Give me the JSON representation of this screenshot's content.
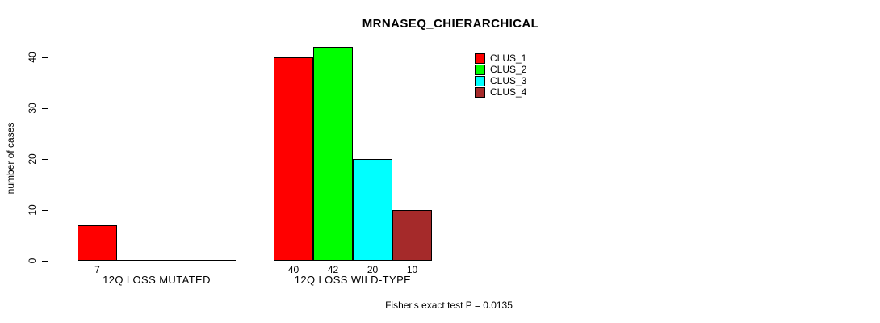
{
  "chart_data": {
    "type": "bar",
    "title": "MRNASEQ_CHIERARCHICAL",
    "ylabel": "number of cases",
    "xlabel": "",
    "yticks": [
      0,
      10,
      20,
      30,
      40
    ],
    "ylim": [
      0,
      42
    ],
    "grid": false,
    "legend_position": "top-right",
    "categories": [
      "12Q LOSS MUTATED",
      "12Q LOSS WILD-TYPE"
    ],
    "series": [
      {
        "name": "CLUS_1",
        "color": "#ff0000",
        "values": [
          7,
          40
        ]
      },
      {
        "name": "CLUS_2",
        "color": "#00ff00",
        "values": [
          0,
          42
        ]
      },
      {
        "name": "CLUS_3",
        "color": "#00ffff",
        "values": [
          0,
          20
        ]
      },
      {
        "name": "CLUS_4",
        "color": "#a52a2a",
        "values": [
          0,
          10
        ]
      }
    ],
    "bar_value_labels": [
      [
        7,
        null,
        null,
        null
      ],
      [
        40,
        42,
        20,
        10
      ]
    ]
  },
  "footer": {
    "note": "Fisher's exact test P = 0.0135"
  },
  "colors": {
    "axis": "#000000",
    "text": "#000000",
    "background": "#ffffff"
  }
}
